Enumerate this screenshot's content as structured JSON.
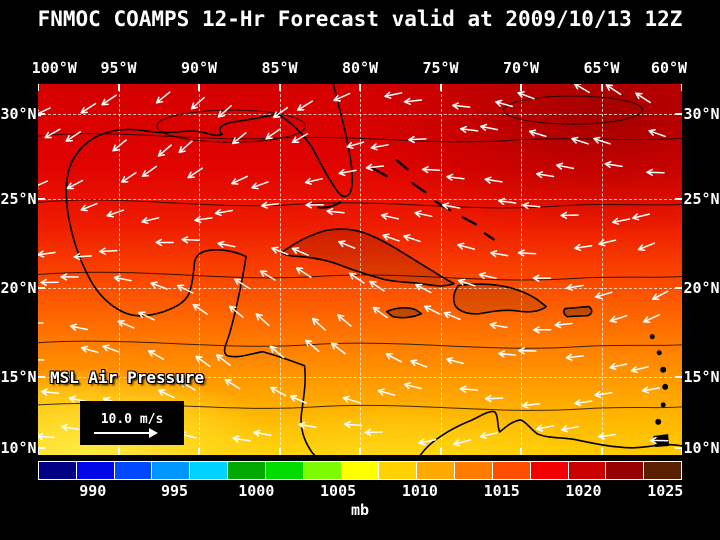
{
  "header": {
    "title": "FNMOC COAMPS 12-Hr Forecast valid at 2009/10/13 12Z"
  },
  "map": {
    "lon_labels": [
      "100°W",
      "95°W",
      "90°W",
      "85°W",
      "80°W",
      "75°W",
      "70°W",
      "65°W",
      "60°W"
    ],
    "lat_labels": [
      "30°N",
      "25°N",
      "20°N",
      "15°N",
      "10°N"
    ],
    "field_label": "MSL Air Pressure",
    "wind_scale_label": "10.0 m/s"
  },
  "colorbar": {
    "unit_label": "mb",
    "tick_labels": [
      "990",
      "995",
      "1000",
      "1005",
      "1010",
      "1015",
      "1020",
      "1025"
    ],
    "cell_colors": [
      "#000082",
      "#0008e8",
      "#0048ff",
      "#0096ff",
      "#00d2ff",
      "#00a800",
      "#00dc00",
      "#7cfc00",
      "#ffff00",
      "#ffd200",
      "#ffa800",
      "#ff7c00",
      "#ff4e00",
      "#f00000",
      "#c80000",
      "#960000",
      "#5a1e00"
    ]
  },
  "chart_data": {
    "type": "heatmap",
    "title": "FNMOC COAMPS 12-Hr Forecast valid at 2009/10/13 12Z",
    "field": "MSL Air Pressure",
    "unit": "mb",
    "colorbar_values": [
      990,
      995,
      1000,
      1005,
      1010,
      1015,
      1020,
      1025
    ],
    "x_tick_labels": [
      "100°W",
      "95°W",
      "90°W",
      "85°W",
      "80°W",
      "75°W",
      "70°W",
      "65°W",
      "60°W"
    ],
    "y_tick_labels": [
      "30°N",
      "25°N",
      "20°N",
      "15°N",
      "10°N"
    ],
    "wind_reference": "10.0 m/s",
    "legend_position": "bottom",
    "grid": true
  }
}
